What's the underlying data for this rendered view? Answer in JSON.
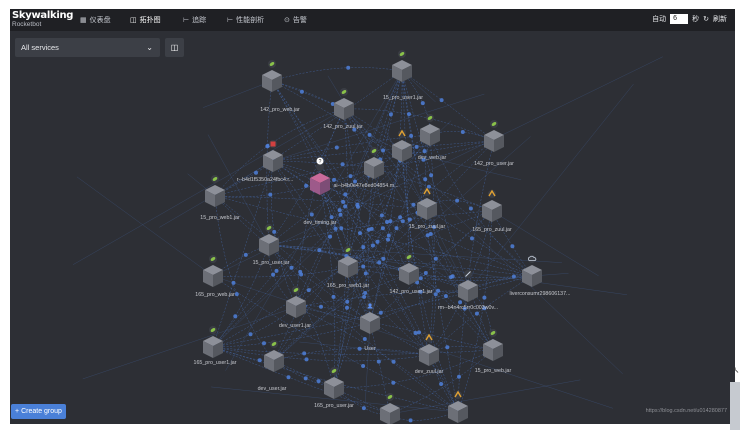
{
  "header": {
    "logo_line1": "Skywalking",
    "logo_line2": "Rocketbot",
    "nav": [
      {
        "icon": "▦",
        "label": "仪表盘"
      },
      {
        "icon": "◫",
        "label": "拓扑图"
      },
      {
        "icon": "⊢",
        "label": "追踪"
      },
      {
        "icon": "⊢",
        "label": "性能剖析"
      },
      {
        "icon": "⊙",
        "label": "告警"
      }
    ],
    "auto_label": "自动",
    "seconds_value": "6",
    "seconds_unit": "秒",
    "refresh_icon": "↻",
    "refresh_label": "刷新"
  },
  "toolbar": {
    "service_select": "All services",
    "chevron": "⌄",
    "layout_icon": "◫"
  },
  "nodes": [
    {
      "label": "",
      "badge": "leaf"
    },
    {
      "label": "142_pro_web.jar",
      "badge": "leaf"
    },
    {
      "label": "15_pro_user1.jar",
      "badge": "leaf"
    },
    {
      "label": "142_pro_zuul.jar",
      "badge": "zuul"
    },
    {
      "label": "dev_web.jar",
      "badge": "leaf"
    },
    {
      "label": "142_pro_user.jar",
      "badge": "leaf"
    },
    {
      "label": "r--b4d1f5350a24fbc4.r...",
      "badge": "red"
    },
    {
      "label": "ai--b4b0e47e8ed04854.m...",
      "badge": "leaf"
    },
    {
      "label": "dev_timing.jar",
      "badge": "user-q"
    },
    {
      "label": "15_pro_web1.jar",
      "badge": "leaf"
    },
    {
      "label": "15_pro_zuul.jar",
      "badge": "zuul"
    },
    {
      "label": "165_pro_zuul.jar",
      "badge": "zuul"
    },
    {
      "label": "15_pro_user.jar",
      "badge": "leaf"
    },
    {
      "label": "165_pro_web.jar",
      "badge": "leaf"
    },
    {
      "label": "165_pro_web1.jar",
      "badge": "leaf"
    },
    {
      "label": "142_pro_user1.jar",
      "badge": "leaf"
    },
    {
      "label": "liverconsumr298606137...",
      "badge": "cloud"
    },
    {
      "label": "rm--b4n4rc5rr0c003w0v...",
      "badge": "slash"
    },
    {
      "label": "dev_user1.jar",
      "badge": "leaf"
    },
    {
      "label": "User",
      "badge": "user"
    },
    {
      "label": "165_pro_user1.jar",
      "badge": "leaf"
    },
    {
      "label": "dev_user.jar",
      "badge": "leaf"
    },
    {
      "label": "dev_zuul.jar",
      "badge": "zuul"
    },
    {
      "label": "15_pro_web.jar",
      "badge": "leaf"
    },
    {
      "label": "165_pro_user.jar",
      "badge": "leaf"
    },
    {
      "label": "",
      "badge": "leaf"
    },
    {
      "label": "dev_eureka.jar",
      "badge": "zuul"
    }
  ],
  "footer": {
    "create_group": "+ Create group",
    "watermark": "https://blog.csdn.net/u014280877"
  },
  "colors": {
    "background": "#2d2f35",
    "topbar": "#1f2024",
    "link": "#4f7fd8",
    "leaf_badge": "#8ac24a",
    "zuul_badge": "#e0a133",
    "red_badge": "#d24040",
    "accent_button": "#4a80d8"
  }
}
